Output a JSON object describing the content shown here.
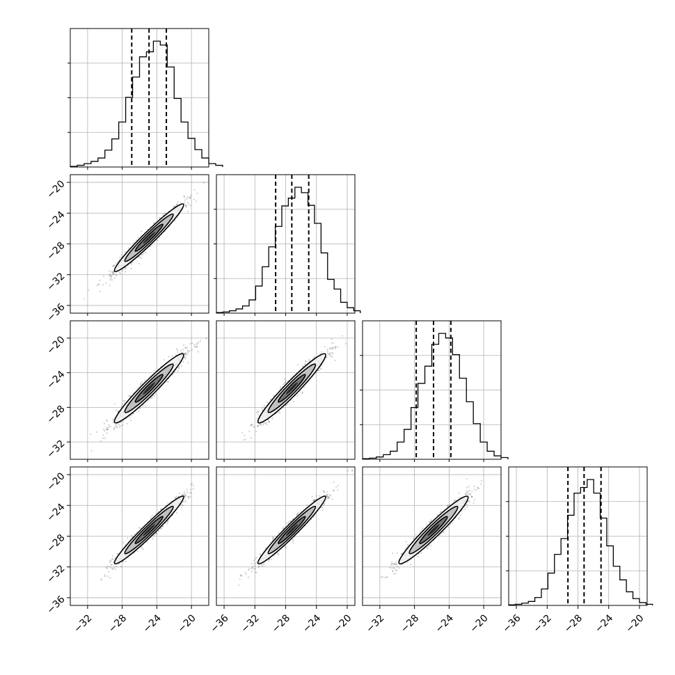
{
  "chart_data": {
    "type": "corner",
    "n_params": 4,
    "grid": true,
    "colors": {
      "line": "#000000",
      "grid": "#b0b0b0",
      "scatter": "#000000",
      "fill": "#7f7f7f"
    },
    "axis_ranges": [
      [
        -34,
        -18
      ],
      [
        -37,
        -19
      ],
      [
        -34,
        -18
      ],
      [
        -37,
        -19
      ]
    ],
    "x_tick_labels": [
      [
        "−32",
        "−28",
        "−24",
        "−20"
      ],
      [
        "−36",
        "−32",
        "−28",
        "−24",
        "−20"
      ],
      [
        "−32",
        "−28",
        "−24",
        "−20"
      ],
      [
        "−36",
        "−32",
        "−28",
        "−24",
        "−20"
      ]
    ],
    "y_tick_labels": [
      [],
      [
        "−20",
        "−24",
        "−28",
        "−32",
        "−36"
      ],
      [
        "−20",
        "−24",
        "−28",
        "−32"
      ],
      [
        "−20",
        "−24",
        "−28",
        "−32",
        "−36"
      ]
    ],
    "quantiles": [
      [
        -26.9,
        -24.9,
        -22.9
      ],
      [
        -29.3,
        -27.2,
        -25.0
      ],
      [
        -27.8,
        -25.8,
        -23.8
      ],
      [
        -29.3,
        -27.2,
        -25.0
      ]
    ],
    "marginals": [
      {
        "bin_start": -34,
        "bin_width": 0.8,
        "counts": [
          1,
          3,
          6,
          10,
          16,
          30,
          50,
          80,
          124,
          160,
          196,
          205,
          224,
          217,
          178,
          122,
          80,
          51,
          31,
          16,
          6,
          3
        ]
      },
      {
        "bin_start": -37,
        "bin_width": 0.85,
        "counts": [
          1,
          2,
          4,
          7,
          12,
          22,
          45,
          77,
          110,
          144,
          178,
          191,
          209,
          200,
          179,
          149,
          100,
          56,
          40,
          18,
          9,
          4
        ]
      },
      {
        "bin_start": -34,
        "bin_width": 0.8,
        "counts": [
          1,
          2,
          4,
          8,
          14,
          30,
          52,
          90,
          132,
          162,
          200,
          219,
          211,
          182,
          141,
          100,
          62,
          30,
          14,
          6,
          3
        ]
      },
      {
        "bin_start": -37,
        "bin_width": 0.85,
        "counts": [
          1,
          2,
          4,
          7,
          14,
          29,
          57,
          90,
          118,
          159,
          198,
          208,
          222,
          198,
          154,
          105,
          69,
          45,
          24,
          12,
          5,
          2
        ]
      }
    ],
    "joint": [
      {
        "row": 1,
        "col": 0,
        "mean": [
          -24.9,
          -27.2
        ],
        "sd": [
          2.0,
          2.2
        ],
        "rho": 0.97
      },
      {
        "row": 2,
        "col": 0,
        "mean": [
          -24.9,
          -25.8
        ],
        "sd": [
          2.0,
          2.0
        ],
        "rho": 0.96
      },
      {
        "row": 2,
        "col": 1,
        "mean": [
          -27.2,
          -25.8
        ],
        "sd": [
          2.2,
          2.0
        ],
        "rho": 0.96
      },
      {
        "row": 3,
        "col": 0,
        "mean": [
          -24.9,
          -27.2
        ],
        "sd": [
          2.0,
          2.2
        ],
        "rho": 0.97
      },
      {
        "row": 3,
        "col": 1,
        "mean": [
          -27.2,
          -27.2
        ],
        "sd": [
          2.2,
          2.2
        ],
        "rho": 0.97
      },
      {
        "row": 3,
        "col": 2,
        "mean": [
          -25.8,
          -27.2
        ],
        "sd": [
          2.0,
          2.2
        ],
        "rho": 0.96
      }
    ]
  }
}
